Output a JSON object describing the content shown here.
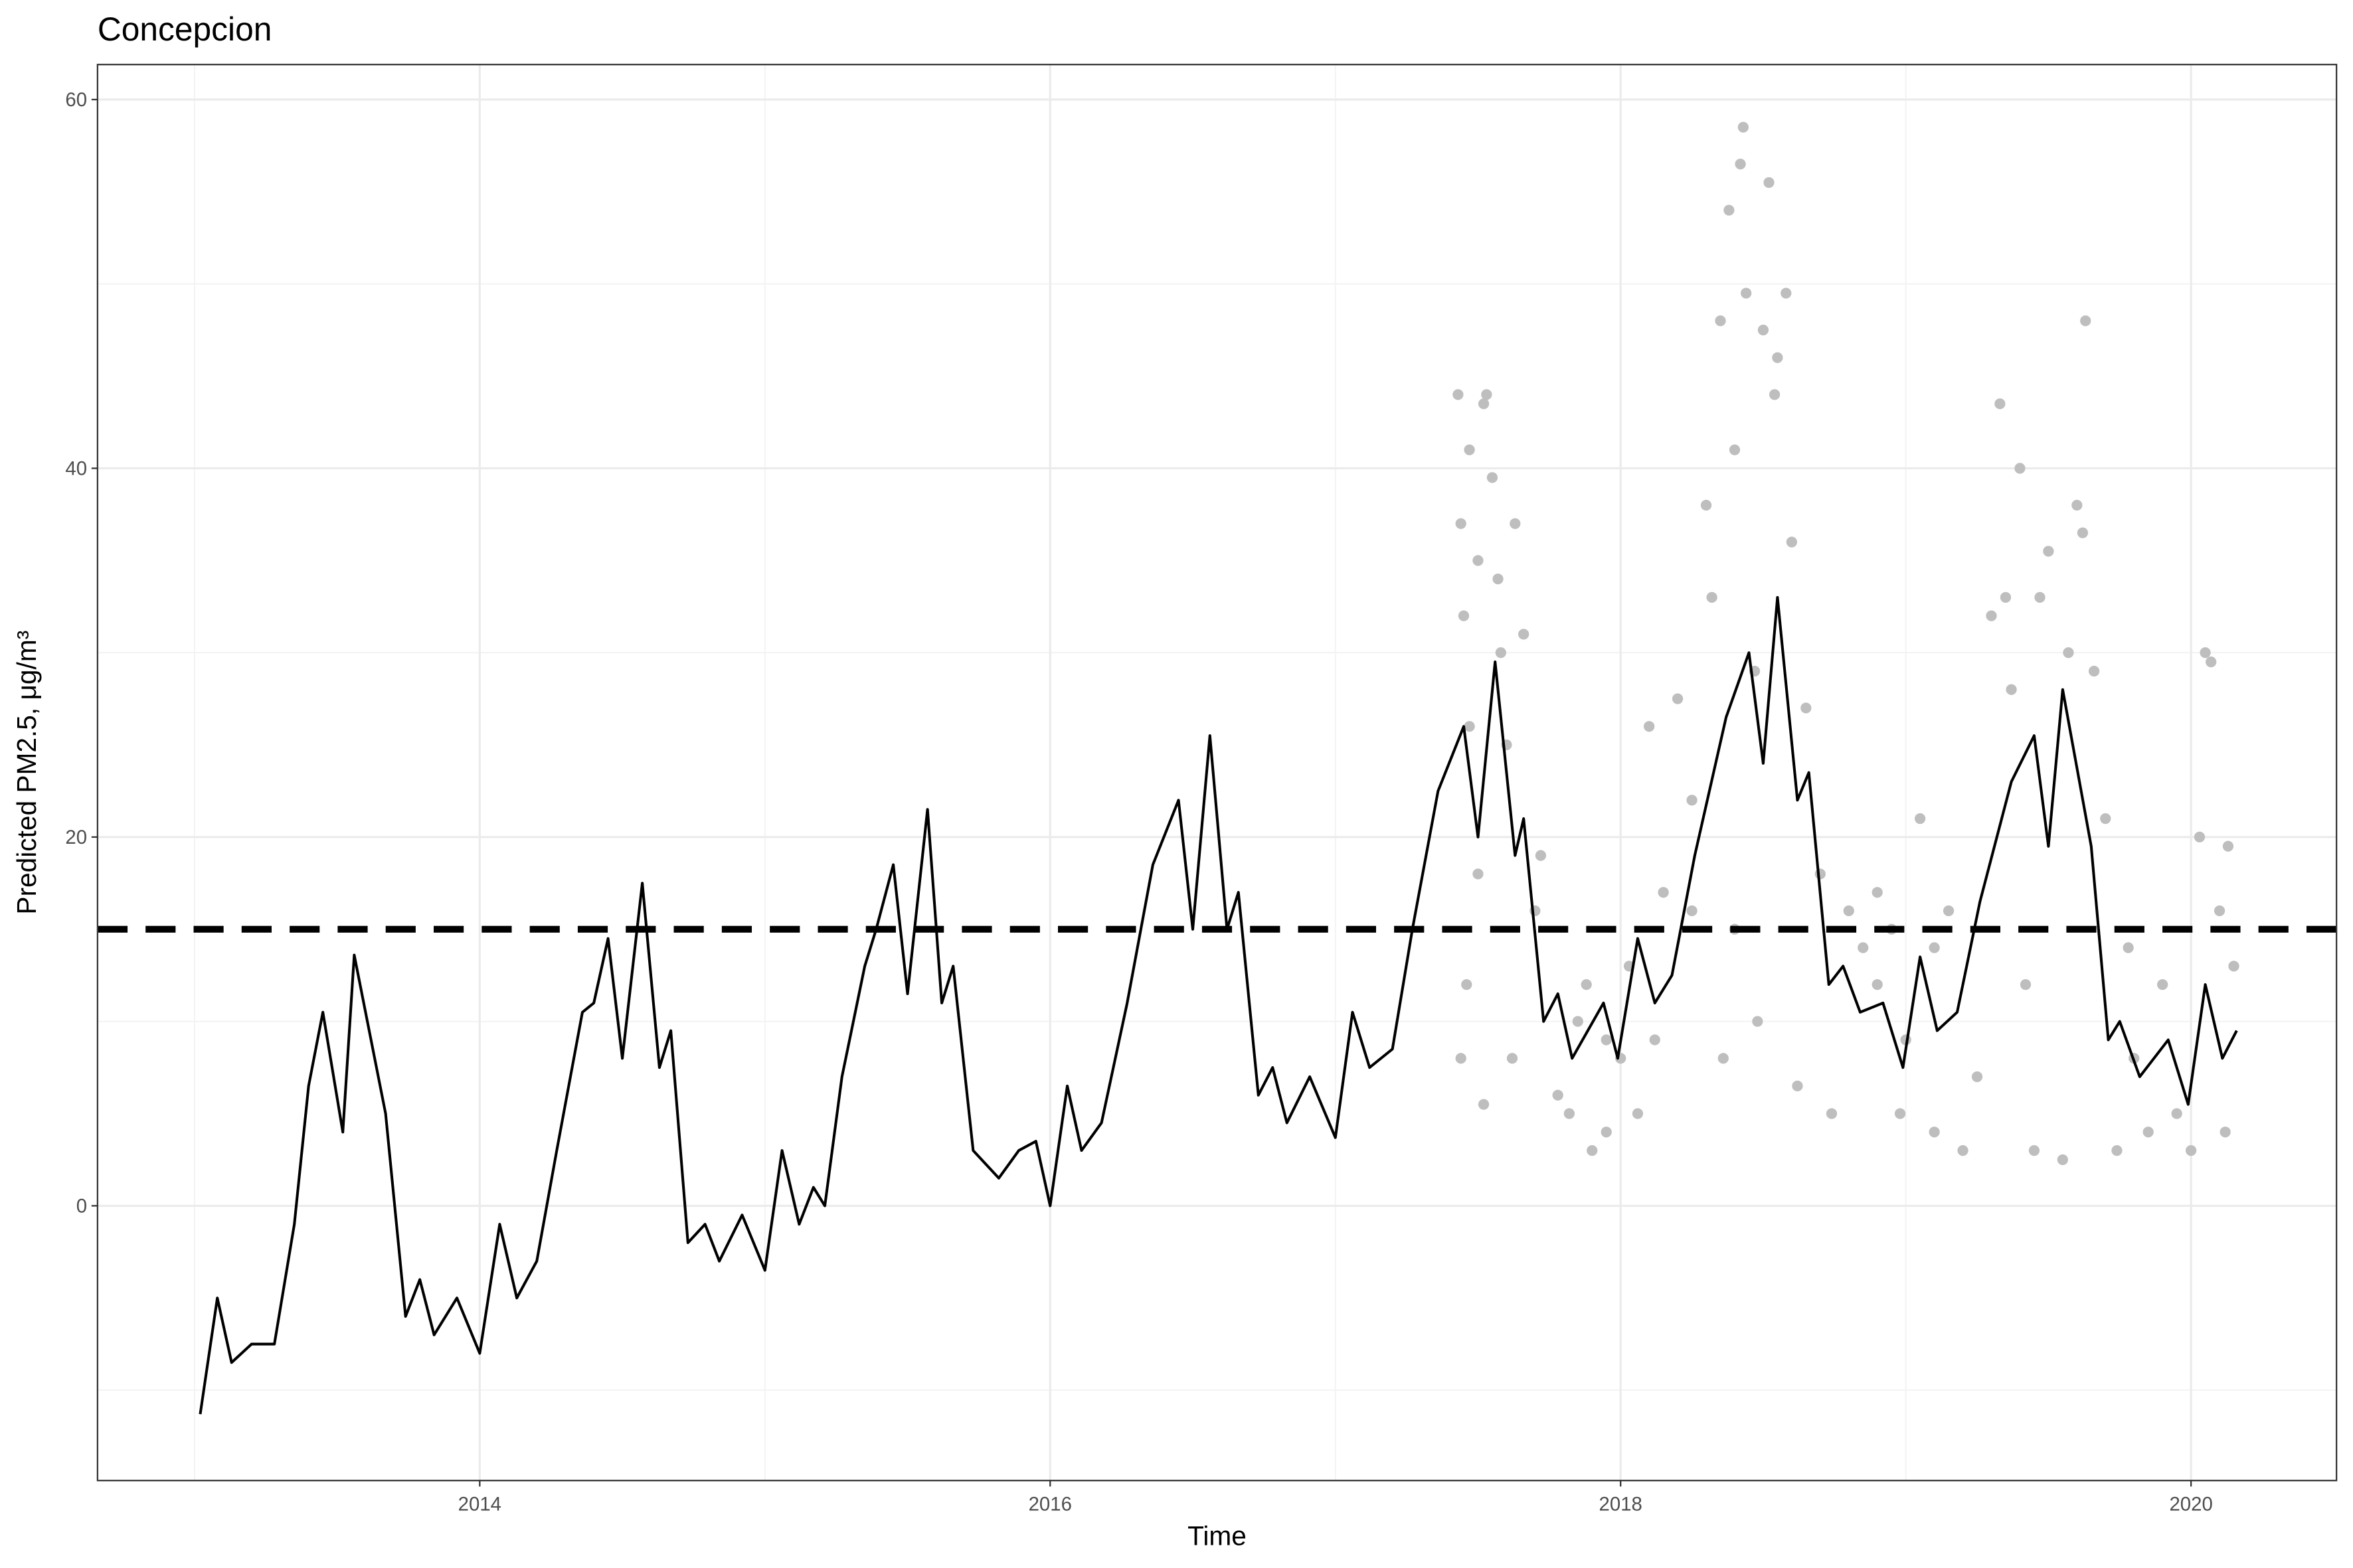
{
  "chart_data": {
    "type": "line_scatter",
    "title": "Concepcion",
    "x_label": "Time",
    "y_label": "Predicted PM2.5, μg/m³",
    "xlim": [
      2012.66,
      2020.51
    ],
    "ylim": [
      -14.9,
      61.9
    ],
    "xticks": [
      2014,
      2016,
      2018,
      2020
    ],
    "yticks": [
      0,
      20,
      40,
      60
    ],
    "x_minor_grid": [
      2013,
      2015,
      2017,
      2019
    ],
    "y_minor_grid": [
      -10,
      10,
      30,
      50
    ],
    "grid": true,
    "reference_line": {
      "value": 15,
      "color": "#000000",
      "dashed": true
    },
    "series": [
      {
        "kind": "line",
        "color": "#000000",
        "x": [
          2013.02,
          2013.08,
          2013.13,
          2013.2,
          2013.28,
          2013.35,
          2013.4,
          2013.45,
          2013.52,
          2013.56,
          2013.67,
          2013.74,
          2013.79,
          2013.84,
          2013.92,
          2014.0,
          2014.07,
          2014.13,
          2014.2,
          2014.27,
          2014.36,
          2014.4,
          2014.45,
          2014.5,
          2014.57,
          2014.63,
          2014.67,
          2014.73,
          2014.79,
          2014.84,
          2014.92,
          2015.0,
          2015.06,
          2015.12,
          2015.17,
          2015.21,
          2015.27,
          2015.35,
          2015.39,
          2015.45,
          2015.5,
          2015.57,
          2015.62,
          2015.66,
          2015.73,
          2015.82,
          2015.89,
          2015.95,
          2016.0,
          2016.06,
          2016.11,
          2016.18,
          2016.27,
          2016.36,
          2016.45,
          2016.5,
          2016.56,
          2016.62,
          2016.66,
          2016.73,
          2016.78,
          2016.83,
          2016.91,
          2017.0,
          2017.06,
          2017.12,
          2017.2,
          2017.27,
          2017.36,
          2017.45,
          2017.5,
          2017.56,
          2017.63,
          2017.66,
          2017.73,
          2017.78,
          2017.83,
          2017.94,
          2017.99,
          2018.06,
          2018.12,
          2018.18,
          2018.26,
          2018.37,
          2018.45,
          2018.5,
          2018.55,
          2018.62,
          2018.66,
          2018.73,
          2018.78,
          2018.84,
          2018.92,
          2018.99,
          2019.05,
          2019.11,
          2019.18,
          2019.26,
          2019.37,
          2019.45,
          2019.5,
          2019.55,
          2019.65,
          2019.71,
          2019.75,
          2019.82,
          2019.92,
          2019.99,
          2020.05,
          2020.11,
          2020.16
        ],
        "values": [
          -11.3,
          -5,
          -8.5,
          -7.5,
          -7.5,
          -1,
          6.5,
          10.5,
          4,
          13.6,
          5,
          -6,
          -4,
          -7,
          -5,
          -8,
          -1,
          -5,
          -3,
          3,
          10.5,
          11,
          14.5,
          8,
          17.5,
          7.5,
          9.5,
          -2,
          -1,
          -3,
          -0.5,
          -3.5,
          3,
          -1,
          1,
          0,
          7,
          13,
          15,
          18.5,
          11.5,
          21.5,
          11,
          13,
          3,
          1.5,
          3,
          3.5,
          0,
          6.5,
          3,
          4.5,
          11,
          18.5,
          22,
          15,
          25.5,
          15,
          17,
          6,
          7.5,
          4.5,
          7,
          3.7,
          10.5,
          7.5,
          8.5,
          15,
          22.5,
          26,
          20,
          29.5,
          19,
          21,
          10,
          11.5,
          8,
          11,
          8,
          14.5,
          11,
          12.5,
          19,
          26.5,
          30,
          24,
          33,
          22,
          23.5,
          12,
          13,
          10.5,
          11,
          7.5,
          13.5,
          9.5,
          10.5,
          16.5,
          23,
          25.5,
          19.5,
          28,
          19.5,
          9,
          10,
          7,
          9,
          5.5,
          12,
          8,
          9.5
        ]
      },
      {
        "kind": "points",
        "color": "#bebebe",
        "x": [
          2017.43,
          2017.44,
          2017.45,
          2017.47,
          2017.5,
          2017.52,
          2017.53,
          2017.55,
          2017.57,
          2017.58,
          2017.47,
          2017.44,
          2017.46,
          2017.5,
          2017.52,
          2017.6,
          2017.63,
          2017.66,
          2017.7,
          2017.62,
          2017.72,
          2017.78,
          2017.82,
          2017.85,
          2017.9,
          2017.95,
          2017.88,
          2018.0,
          2018.03,
          2018.06,
          2018.1,
          2018.12,
          2018.15,
          2018.2,
          2018.25,
          2018.3,
          2018.32,
          2018.35,
          2018.38,
          2018.4,
          2018.42,
          2018.43,
          2018.44,
          2018.36,
          2018.4,
          2018.47,
          2018.5,
          2018.52,
          2018.54,
          2018.55,
          2018.58,
          2018.6,
          2018.48,
          2018.62,
          2018.65,
          2018.7,
          2018.74,
          2018.8,
          2018.85,
          2018.9,
          2018.95,
          2018.98,
          2019.0,
          2019.05,
          2019.1,
          2019.15,
          2019.2,
          2019.25,
          2019.3,
          2019.33,
          2019.35,
          2019.37,
          2019.4,
          2019.42,
          2019.45,
          2019.47,
          2019.5,
          2019.55,
          2019.57,
          2019.6,
          2019.62,
          2019.63,
          2019.66,
          2019.7,
          2019.74,
          2019.78,
          2019.8,
          2019.85,
          2019.9,
          2019.95,
          2020.0,
          2020.03,
          2020.05,
          2020.07,
          2020.1,
          2020.13,
          2020.15,
          2020.12,
          2018.9,
          2019.1,
          2018.25,
          2017.95
        ],
        "values": [
          44,
          37,
          32,
          41,
          35,
          43.5,
          44,
          39.5,
          34,
          30,
          26,
          8,
          12,
          18,
          5.5,
          25,
          37,
          31,
          16,
          8,
          19,
          6,
          5,
          10,
          3,
          4,
          12,
          8,
          13,
          5,
          26,
          9,
          17,
          27.5,
          22,
          38,
          33,
          48,
          54,
          41,
          56.5,
          58.5,
          49.5,
          8,
          15,
          29,
          47.5,
          55.5,
          44,
          46,
          49.5,
          36,
          10,
          6.5,
          27,
          18,
          5,
          16,
          14,
          17,
          15,
          5,
          9,
          21,
          4,
          16,
          3,
          7,
          32,
          43.5,
          33,
          28,
          40,
          12,
          3,
          33,
          35.5,
          2.5,
          30,
          38,
          36.5,
          48,
          29,
          21,
          3,
          14,
          8,
          4,
          12,
          5,
          3,
          20,
          30,
          29.5,
          16,
          19.5,
          13,
          4,
          12,
          14,
          16,
          9
        ]
      }
    ]
  }
}
